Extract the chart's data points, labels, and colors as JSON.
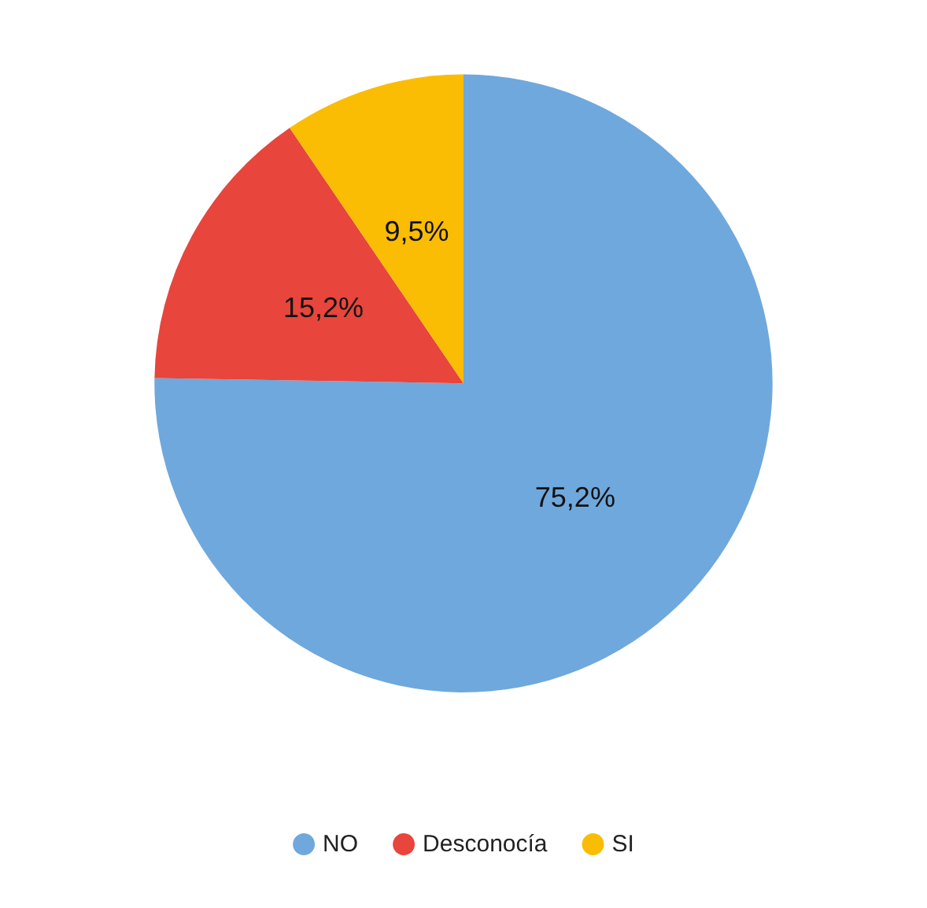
{
  "chart_data": {
    "type": "pie",
    "categories": [
      "NO",
      "Desconocía",
      "SI"
    ],
    "values": [
      75.2,
      15.2,
      9.5
    ],
    "colors": [
      "#6fa8dc",
      "#e8453c",
      "#fbbc04"
    ],
    "value_labels": [
      "75,2%",
      "15,2%",
      "9,5%"
    ],
    "legend": "bottom"
  }
}
